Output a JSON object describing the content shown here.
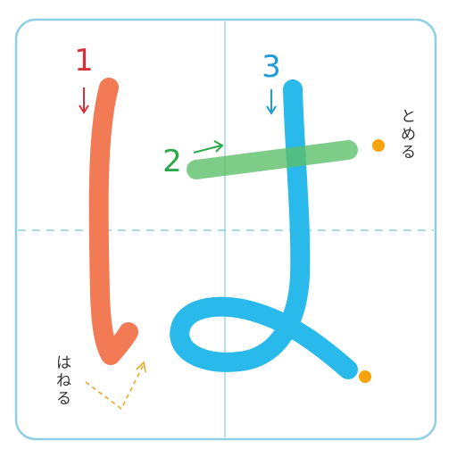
{
  "character": "は",
  "strokes": [
    {
      "number": "1",
      "color": "#f27a55"
    },
    {
      "number": "2",
      "color": "#5cbf6a"
    },
    {
      "number": "3",
      "color": "#29b9ea"
    }
  ],
  "annotations": {
    "tome": "とめる",
    "hane": "はねる"
  },
  "colors": {
    "frame": "#8fd0e6",
    "guide": "#8fd0e6",
    "stroke1_arrow": "#d6303a",
    "stroke2_arrow": "#2aa94a",
    "stroke3_arrow": "#1f9ad6",
    "dot": "#f5a30f",
    "hane_guide": "#e6a92a"
  },
  "icons": {
    "stroke1_arrow": "arrow-down-icon",
    "stroke2_arrow": "arrow-up-right-icon",
    "stroke3_arrow": "arrow-down-icon",
    "tome_marker": "dot-icon",
    "end_marker": "dot-icon"
  }
}
